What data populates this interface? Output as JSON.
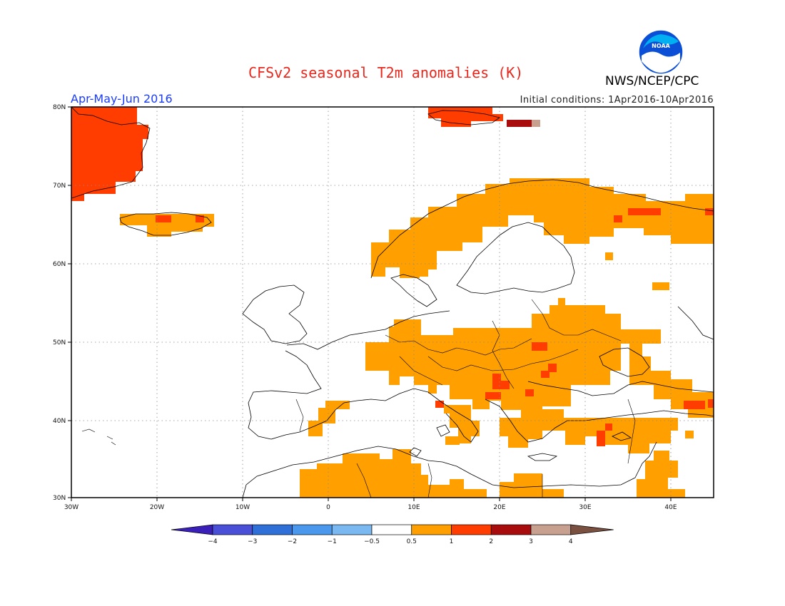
{
  "title": "CFSv2 seasonal T2m anomalies (K)",
  "agency": "NWS/NCEP/CPC",
  "logo_text": "NOAA",
  "period": "Apr-May-Jun 2016",
  "initial_conditions": "Initial conditions: 1Apr2016-10Apr2016",
  "lat_labels": [
    "80N",
    "70N",
    "60N",
    "50N",
    "40N",
    "30N"
  ],
  "lon_labels": [
    "30W",
    "20W",
    "10W",
    "0",
    "10E",
    "20E",
    "30E",
    "40E"
  ],
  "colorbar": {
    "ticks": [
      "-4",
      "-3",
      "-2",
      "-1",
      "-0.5",
      "0.5",
      "1",
      "2",
      "3",
      "4"
    ],
    "colors": [
      "#3a1fb8",
      "#4a4fd8",
      "#2e6fd8",
      "#4a97ee",
      "#7ab8f2",
      "#ffffff",
      "#ffa000",
      "#ff3d00",
      "#a80c0c",
      "#c8a090",
      "#7a5040"
    ]
  },
  "anomaly_colors": {
    "0.5-1": "#ffa000",
    "1-2": "#ff3d00",
    "2-3": "#a80c0c",
    "3-4": "#c8a090"
  }
}
